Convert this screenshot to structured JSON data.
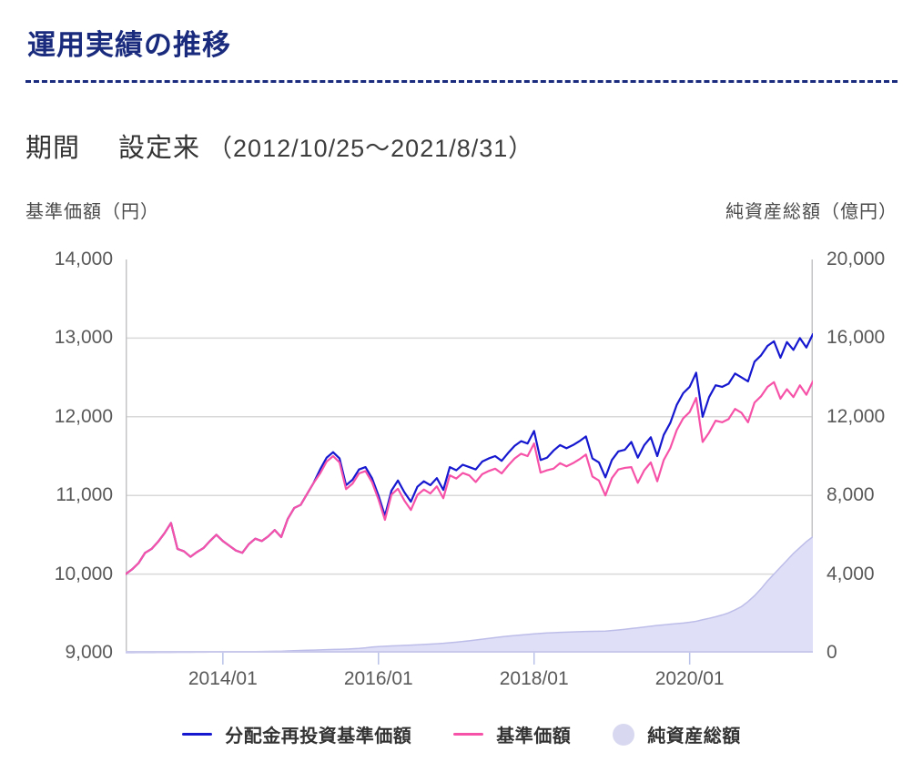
{
  "page": {
    "title": "運用実績の推移",
    "accent_color": "#1a2b7e"
  },
  "period": {
    "label": "期間",
    "value": "設定来",
    "range": "（2012/10/25〜2021/8/31）"
  },
  "axes": {
    "left_caption": "基準価額（円）",
    "right_caption": "純資産総額（億円）"
  },
  "chart_data": {
    "type": "line",
    "x_start": "2012/10/25",
    "x_end": "2021/8/31",
    "x_interval": "monthly",
    "grid": "horizontal",
    "legend_position": "bottom",
    "x_tick_labels": [
      "2014/01",
      "2016/01",
      "2018/01",
      "2020/01"
    ],
    "x_tick_month_index": [
      15,
      39,
      63,
      87
    ],
    "left_axis": {
      "title": "基準価額（円）",
      "min": 9000,
      "max": 14000,
      "ticks": [
        "14,000",
        "13,000",
        "12,000",
        "11,000",
        "10,000",
        "9,000"
      ],
      "tick_values": [
        14000,
        13000,
        12000,
        11000,
        10000,
        9000
      ]
    },
    "right_axis": {
      "title": "純資産総額（億円）",
      "min": 0,
      "max": 20000,
      "ticks": [
        "20,000",
        "16,000",
        "12,000",
        "8,000",
        "4,000",
        "0"
      ],
      "tick_values": [
        20000,
        16000,
        12000,
        8000,
        4000,
        0
      ]
    },
    "gridline_values_left": [
      13000,
      12000,
      11000,
      10000
    ],
    "colors": {
      "gridline": "#d9d9d9",
      "plot_border": "#c4c4c6",
      "tick_mark": "#b9c2e8",
      "area_bottom_line": "#c9c9ec"
    },
    "series": [
      {
        "name": "分配金再投資基準価額",
        "type": "line",
        "axis": "left",
        "color": "#1518cf",
        "values": [
          10000,
          10060,
          10140,
          10270,
          10320,
          10410,
          10520,
          10650,
          10320,
          10290,
          10220,
          10280,
          10330,
          10420,
          10500,
          10420,
          10360,
          10300,
          10270,
          10380,
          10450,
          10420,
          10480,
          10560,
          10470,
          10700,
          10840,
          10880,
          11020,
          11160,
          11330,
          11480,
          11550,
          11470,
          11130,
          11200,
          11330,
          11360,
          11220,
          11000,
          10740,
          11060,
          11190,
          11040,
          10920,
          11110,
          11180,
          11130,
          11220,
          11070,
          11360,
          11320,
          11390,
          11360,
          11330,
          11430,
          11470,
          11500,
          11440,
          11540,
          11630,
          11690,
          11660,
          11820,
          11450,
          11480,
          11570,
          11640,
          11600,
          11640,
          11690,
          11750,
          11470,
          11420,
          11230,
          11450,
          11560,
          11580,
          11680,
          11480,
          11640,
          11740,
          11500,
          11770,
          11920,
          12150,
          12300,
          12380,
          12560,
          12000,
          12250,
          12400,
          12380,
          12420,
          12550,
          12500,
          12450,
          12700,
          12780,
          12900,
          12960,
          12750,
          12950,
          12850,
          13000,
          12880,
          13050
        ]
      },
      {
        "name": "基準価額",
        "type": "line",
        "axis": "left",
        "color": "#f653a8",
        "values": [
          10000,
          10060,
          10140,
          10270,
          10320,
          10410,
          10520,
          10650,
          10320,
          10290,
          10220,
          10280,
          10330,
          10420,
          10500,
          10420,
          10360,
          10300,
          10270,
          10380,
          10450,
          10420,
          10480,
          10560,
          10470,
          10700,
          10840,
          10880,
          11020,
          11160,
          11280,
          11430,
          11500,
          11420,
          11080,
          11150,
          11280,
          11310,
          11170,
          10950,
          10690,
          11010,
          11085,
          10935,
          10815,
          11005,
          11075,
          11025,
          11115,
          10965,
          11255,
          11215,
          11285,
          11255,
          11170,
          11270,
          11310,
          11340,
          11280,
          11380,
          11470,
          11530,
          11500,
          11660,
          11290,
          11320,
          11340,
          11410,
          11370,
          11410,
          11460,
          11520,
          11240,
          11190,
          11000,
          11220,
          11330,
          11350,
          11360,
          11160,
          11320,
          11420,
          11180,
          11450,
          11600,
          11830,
          11980,
          12060,
          12240,
          11680,
          11800,
          11950,
          11930,
          11970,
          12100,
          12050,
          11930,
          12180,
          12260,
          12380,
          12440,
          12230,
          12350,
          12250,
          12400,
          12280,
          12450
        ]
      },
      {
        "name": "純資産総額",
        "type": "area",
        "axis": "right",
        "color": "#dfdff7",
        "border_color": "#bdbde9",
        "values": [
          5,
          8,
          10,
          12,
          14,
          16,
          18,
          20,
          22,
          24,
          26,
          28,
          30,
          32,
          35,
          38,
          42,
          46,
          50,
          55,
          60,
          64,
          68,
          73,
          78,
          90,
          105,
          115,
          125,
          135,
          145,
          155,
          165,
          175,
          185,
          200,
          220,
          250,
          290,
          310,
          330,
          345,
          360,
          375,
          390,
          405,
          420,
          440,
          460,
          480,
          510,
          540,
          575,
          610,
          650,
          690,
          730,
          770,
          810,
          845,
          875,
          900,
          930,
          960,
          985,
          1005,
          1020,
          1035,
          1050,
          1060,
          1070,
          1080,
          1090,
          1095,
          1100,
          1130,
          1160,
          1190,
          1230,
          1270,
          1310,
          1350,
          1390,
          1420,
          1450,
          1480,
          1510,
          1550,
          1600,
          1680,
          1750,
          1830,
          1920,
          2030,
          2180,
          2350,
          2600,
          2900,
          3250,
          3650,
          4000,
          4350,
          4700,
          5050,
          5350,
          5650,
          5900
        ]
      }
    ],
    "legend": [
      {
        "label": "分配金再投資基準価額",
        "swatch": "line",
        "color": "#1518cf"
      },
      {
        "label": "基準価額",
        "swatch": "line",
        "color": "#f653a8"
      },
      {
        "label": "純資産総額",
        "swatch": "circle",
        "color": "#d8d8f0"
      }
    ]
  }
}
